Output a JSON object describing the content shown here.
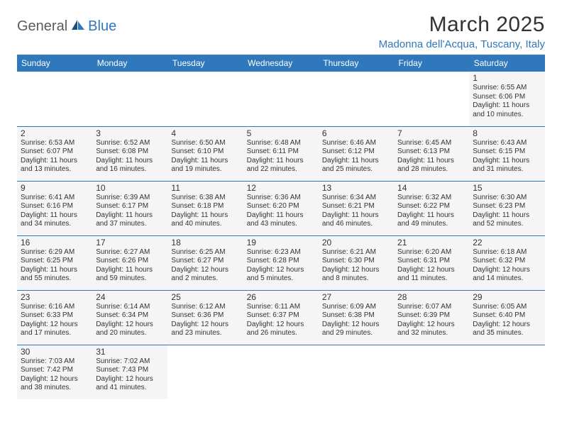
{
  "logo": {
    "general": "General",
    "blue": "Blue"
  },
  "title": "March 2025",
  "location": "Madonna dell'Acqua, Tuscany, Italy",
  "colors": {
    "headerBg": "#2f78bb",
    "headerText": "#ffffff",
    "cellBg": "#f5f5f5",
    "borderColor": "#2f78bb",
    "textColor": "#333333",
    "logoGray": "#5b5b5b",
    "logoBlue": "#2f78bb",
    "pageBg": "#ffffff"
  },
  "layout": {
    "pageWidth": 792,
    "pageHeight": 612,
    "columns": 7,
    "rows": 6,
    "dayFontSize": 12,
    "detailFontSize": 10,
    "headerFontSize": 12,
    "titleFontSize": 30,
    "locationFontSize": 15
  },
  "weekdays": [
    "Sunday",
    "Monday",
    "Tuesday",
    "Wednesday",
    "Thursday",
    "Friday",
    "Saturday"
  ],
  "weeks": [
    [
      null,
      null,
      null,
      null,
      null,
      null,
      {
        "n": "1",
        "sr": "Sunrise: 6:55 AM",
        "ss": "Sunset: 6:06 PM",
        "dl": "Daylight: 11 hours and 10 minutes."
      }
    ],
    [
      {
        "n": "2",
        "sr": "Sunrise: 6:53 AM",
        "ss": "Sunset: 6:07 PM",
        "dl": "Daylight: 11 hours and 13 minutes."
      },
      {
        "n": "3",
        "sr": "Sunrise: 6:52 AM",
        "ss": "Sunset: 6:08 PM",
        "dl": "Daylight: 11 hours and 16 minutes."
      },
      {
        "n": "4",
        "sr": "Sunrise: 6:50 AM",
        "ss": "Sunset: 6:10 PM",
        "dl": "Daylight: 11 hours and 19 minutes."
      },
      {
        "n": "5",
        "sr": "Sunrise: 6:48 AM",
        "ss": "Sunset: 6:11 PM",
        "dl": "Daylight: 11 hours and 22 minutes."
      },
      {
        "n": "6",
        "sr": "Sunrise: 6:46 AM",
        "ss": "Sunset: 6:12 PM",
        "dl": "Daylight: 11 hours and 25 minutes."
      },
      {
        "n": "7",
        "sr": "Sunrise: 6:45 AM",
        "ss": "Sunset: 6:13 PM",
        "dl": "Daylight: 11 hours and 28 minutes."
      },
      {
        "n": "8",
        "sr": "Sunrise: 6:43 AM",
        "ss": "Sunset: 6:15 PM",
        "dl": "Daylight: 11 hours and 31 minutes."
      }
    ],
    [
      {
        "n": "9",
        "sr": "Sunrise: 6:41 AM",
        "ss": "Sunset: 6:16 PM",
        "dl": "Daylight: 11 hours and 34 minutes."
      },
      {
        "n": "10",
        "sr": "Sunrise: 6:39 AM",
        "ss": "Sunset: 6:17 PM",
        "dl": "Daylight: 11 hours and 37 minutes."
      },
      {
        "n": "11",
        "sr": "Sunrise: 6:38 AM",
        "ss": "Sunset: 6:18 PM",
        "dl": "Daylight: 11 hours and 40 minutes."
      },
      {
        "n": "12",
        "sr": "Sunrise: 6:36 AM",
        "ss": "Sunset: 6:20 PM",
        "dl": "Daylight: 11 hours and 43 minutes."
      },
      {
        "n": "13",
        "sr": "Sunrise: 6:34 AM",
        "ss": "Sunset: 6:21 PM",
        "dl": "Daylight: 11 hours and 46 minutes."
      },
      {
        "n": "14",
        "sr": "Sunrise: 6:32 AM",
        "ss": "Sunset: 6:22 PM",
        "dl": "Daylight: 11 hours and 49 minutes."
      },
      {
        "n": "15",
        "sr": "Sunrise: 6:30 AM",
        "ss": "Sunset: 6:23 PM",
        "dl": "Daylight: 11 hours and 52 minutes."
      }
    ],
    [
      {
        "n": "16",
        "sr": "Sunrise: 6:29 AM",
        "ss": "Sunset: 6:25 PM",
        "dl": "Daylight: 11 hours and 55 minutes."
      },
      {
        "n": "17",
        "sr": "Sunrise: 6:27 AM",
        "ss": "Sunset: 6:26 PM",
        "dl": "Daylight: 11 hours and 59 minutes."
      },
      {
        "n": "18",
        "sr": "Sunrise: 6:25 AM",
        "ss": "Sunset: 6:27 PM",
        "dl": "Daylight: 12 hours and 2 minutes."
      },
      {
        "n": "19",
        "sr": "Sunrise: 6:23 AM",
        "ss": "Sunset: 6:28 PM",
        "dl": "Daylight: 12 hours and 5 minutes."
      },
      {
        "n": "20",
        "sr": "Sunrise: 6:21 AM",
        "ss": "Sunset: 6:30 PM",
        "dl": "Daylight: 12 hours and 8 minutes."
      },
      {
        "n": "21",
        "sr": "Sunrise: 6:20 AM",
        "ss": "Sunset: 6:31 PM",
        "dl": "Daylight: 12 hours and 11 minutes."
      },
      {
        "n": "22",
        "sr": "Sunrise: 6:18 AM",
        "ss": "Sunset: 6:32 PM",
        "dl": "Daylight: 12 hours and 14 minutes."
      }
    ],
    [
      {
        "n": "23",
        "sr": "Sunrise: 6:16 AM",
        "ss": "Sunset: 6:33 PM",
        "dl": "Daylight: 12 hours and 17 minutes."
      },
      {
        "n": "24",
        "sr": "Sunrise: 6:14 AM",
        "ss": "Sunset: 6:34 PM",
        "dl": "Daylight: 12 hours and 20 minutes."
      },
      {
        "n": "25",
        "sr": "Sunrise: 6:12 AM",
        "ss": "Sunset: 6:36 PM",
        "dl": "Daylight: 12 hours and 23 minutes."
      },
      {
        "n": "26",
        "sr": "Sunrise: 6:11 AM",
        "ss": "Sunset: 6:37 PM",
        "dl": "Daylight: 12 hours and 26 minutes."
      },
      {
        "n": "27",
        "sr": "Sunrise: 6:09 AM",
        "ss": "Sunset: 6:38 PM",
        "dl": "Daylight: 12 hours and 29 minutes."
      },
      {
        "n": "28",
        "sr": "Sunrise: 6:07 AM",
        "ss": "Sunset: 6:39 PM",
        "dl": "Daylight: 12 hours and 32 minutes."
      },
      {
        "n": "29",
        "sr": "Sunrise: 6:05 AM",
        "ss": "Sunset: 6:40 PM",
        "dl": "Daylight: 12 hours and 35 minutes."
      }
    ],
    [
      {
        "n": "30",
        "sr": "Sunrise: 7:03 AM",
        "ss": "Sunset: 7:42 PM",
        "dl": "Daylight: 12 hours and 38 minutes."
      },
      {
        "n": "31",
        "sr": "Sunrise: 7:02 AM",
        "ss": "Sunset: 7:43 PM",
        "dl": "Daylight: 12 hours and 41 minutes."
      },
      null,
      null,
      null,
      null,
      null
    ]
  ]
}
